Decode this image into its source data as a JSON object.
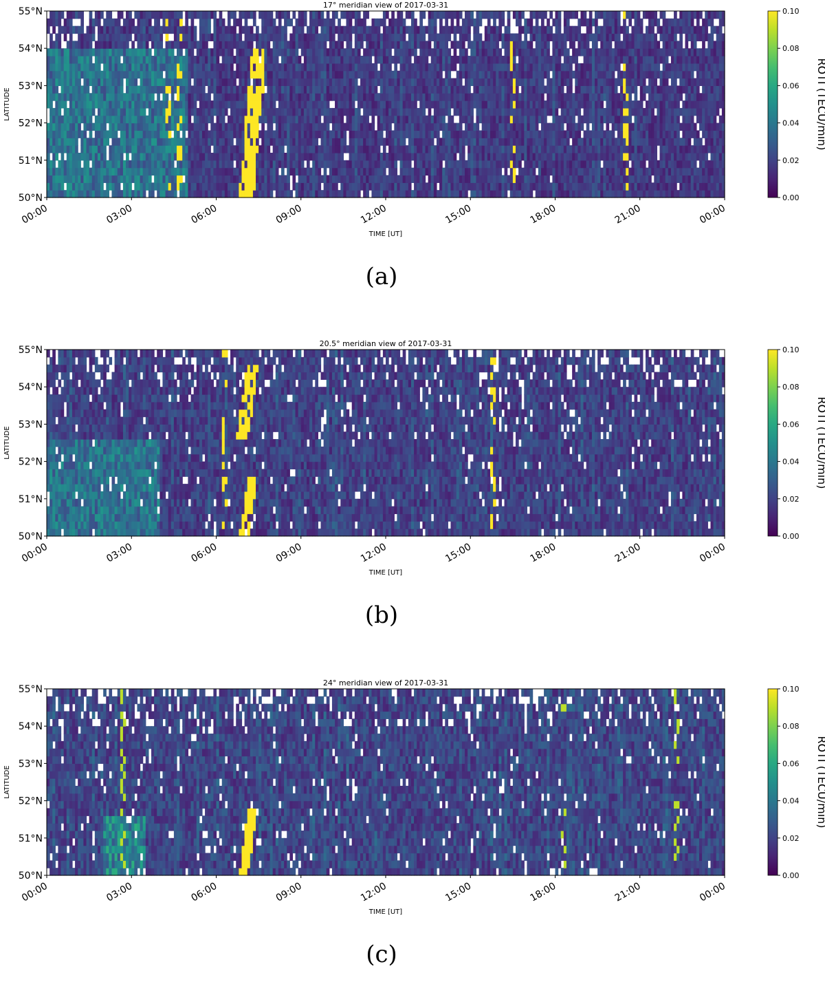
{
  "chart_data": [
    {
      "type": "heatmap",
      "panel_label": "(a)",
      "title": "17° meridian view of 2017-03-31",
      "xlabel": "TIME [UT]",
      "ylabel": "LATITUDE",
      "x_tick_labels": [
        "00:00",
        "03:00",
        "06:00",
        "09:00",
        "12:00",
        "15:00",
        "18:00",
        "21:00",
        "00:00"
      ],
      "xlim_hours": [
        0,
        24
      ],
      "y_tick_labels": [
        "50°N",
        "51°N",
        "52°N",
        "53°N",
        "54°N",
        "55°N"
      ],
      "ylim_deg": [
        50,
        55
      ],
      "colorbar": {
        "label": "ROTI (TECU/min)",
        "range": [
          0.0,
          0.1
        ],
        "ticks": [
          "0.00",
          "0.02",
          "0.04",
          "0.06",
          "0.08",
          "0.10"
        ],
        "colormap": "viridis"
      },
      "background_level": 0.018,
      "gaps": "white cells where no data",
      "features": [
        {
          "kind": "strong_band",
          "time_start": "06:50",
          "time_end": "07:45",
          "lat_start": 50.0,
          "lat_end": 54.0,
          "value": 0.1
        },
        {
          "kind": "strong_spots",
          "times": [
            "04:20",
            "04:40",
            "16:30",
            "20:30"
          ],
          "value": 0.1
        },
        {
          "kind": "enhanced_region",
          "time_start": "00:00",
          "time_end": "05:00",
          "lat_start": 50.0,
          "lat_end": 54.0,
          "value": 0.05
        }
      ]
    },
    {
      "type": "heatmap",
      "panel_label": "(b)",
      "title": "20.5° meridian view of 2017-03-31",
      "xlabel": "TIME [UT]",
      "ylabel": "LATITUDE",
      "x_tick_labels": [
        "00:00",
        "03:00",
        "06:00",
        "09:00",
        "12:00",
        "15:00",
        "18:00",
        "21:00",
        "00:00"
      ],
      "xlim_hours": [
        0,
        24
      ],
      "y_tick_labels": [
        "50°N",
        "51°N",
        "52°N",
        "53°N",
        "54°N",
        "55°N"
      ],
      "ylim_deg": [
        50,
        55
      ],
      "colorbar": {
        "label": "ROTI (TECU/min)",
        "range": [
          0.0,
          0.1
        ],
        "ticks": [
          "0.00",
          "0.02",
          "0.04",
          "0.06",
          "0.08",
          "0.10"
        ],
        "colormap": "viridis"
      },
      "background_level": 0.02,
      "gaps": "white cells where no data",
      "features": [
        {
          "kind": "strong_band",
          "time_start": "06:45",
          "time_end": "07:30",
          "lat_start": 52.7,
          "lat_end": 54.6,
          "value": 0.1
        },
        {
          "kind": "strong_band",
          "time_start": "06:50",
          "time_end": "07:25",
          "lat_start": 50.0,
          "lat_end": 51.5,
          "value": 0.1
        },
        {
          "kind": "strong_spots",
          "times": [
            "06:20",
            "15:50"
          ],
          "value": 0.1
        },
        {
          "kind": "enhanced_region",
          "time_start": "00:00",
          "time_end": "04:00",
          "lat_start": 50.0,
          "lat_end": 52.5,
          "value": 0.05
        }
      ]
    },
    {
      "type": "heatmap",
      "panel_label": "(c)",
      "title": "24° meridian view of 2017-03-31",
      "xlabel": "TIME [UT]",
      "ylabel": "LATITUDE",
      "x_tick_labels": [
        "00:00",
        "03:00",
        "06:00",
        "09:00",
        "12:00",
        "15:00",
        "18:00",
        "21:00",
        "00:00"
      ],
      "xlim_hours": [
        0,
        24
      ],
      "y_tick_labels": [
        "50°N",
        "51°N",
        "52°N",
        "53°N",
        "54°N",
        "55°N"
      ],
      "ylim_deg": [
        50,
        55
      ],
      "colorbar": {
        "label": "ROTI (TECU/min)",
        "range": [
          0.0,
          0.1
        ],
        "ticks": [
          "0.00",
          "0.02",
          "0.04",
          "0.06",
          "0.08",
          "0.10"
        ],
        "colormap": "viridis"
      },
      "background_level": 0.022,
      "gaps": "white cells where no data; large gaps near 06:00, 08:00 and 17:30-18:15",
      "features": [
        {
          "kind": "strong_band",
          "time_start": "06:50",
          "time_end": "07:25",
          "lat_start": 50.0,
          "lat_end": 51.8,
          "value": 0.1
        },
        {
          "kind": "strong_spots",
          "times": [
            "02:40",
            "18:20",
            "22:20"
          ],
          "value": 0.09
        },
        {
          "kind": "enhanced_region",
          "time_start": "02:00",
          "time_end": "03:30",
          "lat_start": 50.0,
          "lat_end": 51.5,
          "value": 0.06
        }
      ]
    }
  ]
}
